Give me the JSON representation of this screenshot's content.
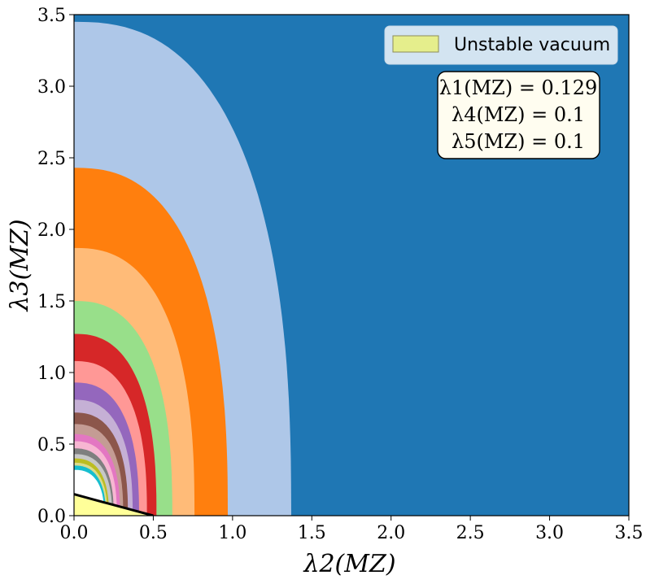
{
  "chart_data": {
    "type": "scatter",
    "title": "",
    "xlabel": "λ2(MZ)",
    "ylabel": "λ3(MZ)",
    "xlim": [
      0.0,
      3.5
    ],
    "ylim": [
      0.0,
      3.5
    ],
    "xticks": [
      "0.0",
      "0.5",
      "1.0",
      "1.5",
      "2.0",
      "2.5",
      "3.0",
      "3.5"
    ],
    "yticks": [
      "0.0",
      "0.5",
      "1.0",
      "1.5",
      "2.0",
      "2.5",
      "3.0",
      "3.5"
    ],
    "grid": false,
    "legend": {
      "placement": "top-right",
      "entries": [
        {
          "label": "Unstable vacuum",
          "color": "#e5ee8c"
        }
      ]
    },
    "annotation": {
      "lines": [
        "λ1(MZ) = 0.129",
        "λ4(MZ) = 0.1",
        "λ5(MZ) = 0.1"
      ],
      "facecolor": "#fffdf0"
    },
    "background_color": "#1f77b4",
    "regions": [
      {
        "outer_radius_on_axes": [
          1.37,
          3.45
        ],
        "color": "#aec7e8"
      },
      {
        "outer_radius_on_axes": [
          0.97,
          2.43
        ],
        "color": "#ff7f0e"
      },
      {
        "outer_radius_on_axes": [
          0.76,
          1.87
        ],
        "color": "#ffbb78"
      },
      {
        "outer_radius_on_axes": [
          0.62,
          1.5
        ],
        "color": "#98df8a"
      },
      {
        "outer_radius_on_axes": [
          0.52,
          1.27
        ],
        "color": "#d62728"
      },
      {
        "outer_radius_on_axes": [
          0.46,
          1.08
        ],
        "color": "#ff9896"
      },
      {
        "outer_radius_on_axes": [
          0.41,
          0.93
        ],
        "color": "#9467bd"
      },
      {
        "outer_radius_on_axes": [
          0.37,
          0.81
        ],
        "color": "#c5b0d5"
      },
      {
        "outer_radius_on_axes": [
          0.34,
          0.72
        ],
        "color": "#8c564b"
      },
      {
        "outer_radius_on_axes": [
          0.31,
          0.64
        ],
        "color": "#c49c94"
      },
      {
        "outer_radius_on_axes": [
          0.29,
          0.57
        ],
        "color": "#e377c2"
      },
      {
        "outer_radius_on_axes": [
          0.27,
          0.52
        ],
        "color": "#f7b6d2"
      },
      {
        "outer_radius_on_axes": [
          0.25,
          0.47
        ],
        "color": "#7f7f7f"
      },
      {
        "outer_radius_on_axes": [
          0.24,
          0.43
        ],
        "color": "#c7c7c7"
      },
      {
        "outer_radius_on_axes": [
          0.22,
          0.4
        ],
        "color": "#bcbd22"
      },
      {
        "outer_radius_on_axes": [
          0.21,
          0.37
        ],
        "color": "#dbdb8d"
      },
      {
        "outer_radius_on_axes": [
          0.2,
          0.35
        ],
        "color": "#17becf"
      },
      {
        "outer_radius_on_axes": [
          0.19,
          0.32
        ],
        "color": "#ffffff"
      }
    ],
    "unstable_region": {
      "color": "#ffff99",
      "boundary": {
        "x": [
          0.0,
          0.1,
          0.2,
          0.3,
          0.4,
          0.5
        ],
        "y": [
          0.15,
          0.12,
          0.09,
          0.06,
          0.03,
          0.0
        ]
      }
    }
  }
}
